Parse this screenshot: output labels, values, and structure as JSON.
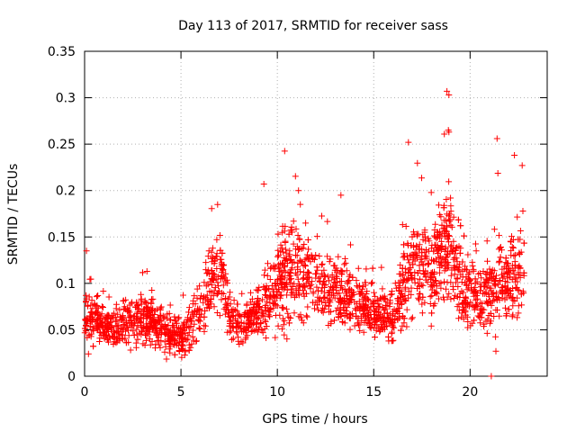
{
  "chart_data": {
    "type": "scatter",
    "title": "Day 113 of 2017, SRMTID for receiver sass",
    "xlabel": "GPS time / hours",
    "ylabel": "SRMTID / TECUs",
    "xlim": [
      0,
      24
    ],
    "ylim": [
      0,
      0.35
    ],
    "xticks": [
      0,
      5,
      10,
      15,
      20
    ],
    "xtick_labels": [
      "0",
      "5",
      "10",
      "15",
      "20"
    ],
    "yticks": [
      0,
      0.05,
      0.1,
      0.15,
      0.2,
      0.25,
      0.3,
      0.35
    ],
    "ytick_labels": [
      "0",
      "0.05",
      "0.1",
      "0.15",
      "0.2",
      "0.25",
      "0.3",
      "0.35"
    ],
    "grid": true,
    "marker": "plus",
    "marker_color": "#ff0000",
    "grid_color": "#b0b0b0",
    "series": [
      {
        "name": "SRMTID",
        "envelope_hours": [
          0,
          0.5,
          1,
          1.5,
          2,
          2.5,
          3,
          3.5,
          4,
          4.5,
          5,
          5.5,
          6,
          6.5,
          7,
          7.5,
          8,
          8.5,
          9,
          9.5,
          10,
          10.5,
          11,
          11.5,
          12,
          12.5,
          13,
          13.5,
          14,
          14.5,
          15,
          15.5,
          16,
          16.5,
          17,
          17.5,
          18,
          18.5,
          19,
          19.5,
          20,
          20.5,
          21,
          21.5,
          22,
          22.5
        ],
        "envelope_median": [
          0.065,
          0.062,
          0.055,
          0.05,
          0.06,
          0.062,
          0.06,
          0.057,
          0.05,
          0.045,
          0.042,
          0.055,
          0.075,
          0.1,
          0.12,
          0.06,
          0.055,
          0.06,
          0.07,
          0.085,
          0.1,
          0.11,
          0.12,
          0.105,
          0.1,
          0.09,
          0.095,
          0.09,
          0.08,
          0.075,
          0.07,
          0.065,
          0.06,
          0.1,
          0.12,
          0.12,
          0.11,
          0.13,
          0.15,
          0.1,
          0.09,
          0.08,
          0.09,
          0.1,
          0.1,
          0.11
        ],
        "envelope_spread": [
          0.03,
          0.025,
          0.02,
          0.02,
          0.03,
          0.03,
          0.03,
          0.03,
          0.025,
          0.025,
          0.02,
          0.03,
          0.04,
          0.05,
          0.05,
          0.025,
          0.025,
          0.025,
          0.03,
          0.045,
          0.05,
          0.06,
          0.055,
          0.05,
          0.045,
          0.04,
          0.045,
          0.04,
          0.035,
          0.035,
          0.035,
          0.03,
          0.03,
          0.05,
          0.06,
          0.06,
          0.05,
          0.06,
          0.07,
          0.05,
          0.05,
          0.04,
          0.05,
          0.055,
          0.05,
          0.055
        ],
        "notable_points": [
          {
            "x": 0.1,
            "y": 0.135
          },
          {
            "x": 0.2,
            "y": 0.024
          },
          {
            "x": 6.9,
            "y": 0.185
          },
          {
            "x": 9.3,
            "y": 0.207
          },
          {
            "x": 11.1,
            "y": 0.2
          },
          {
            "x": 13.3,
            "y": 0.195
          },
          {
            "x": 16.8,
            "y": 0.252
          },
          {
            "x": 18.8,
            "y": 0.307
          },
          {
            "x": 18.9,
            "y": 0.303
          },
          {
            "x": 18.9,
            "y": 0.263
          },
          {
            "x": 21.1,
            "y": 0.0
          },
          {
            "x": 21.4,
            "y": 0.256
          },
          {
            "x": 22.3,
            "y": 0.238
          },
          {
            "x": 22.7,
            "y": 0.227
          }
        ]
      }
    ]
  }
}
